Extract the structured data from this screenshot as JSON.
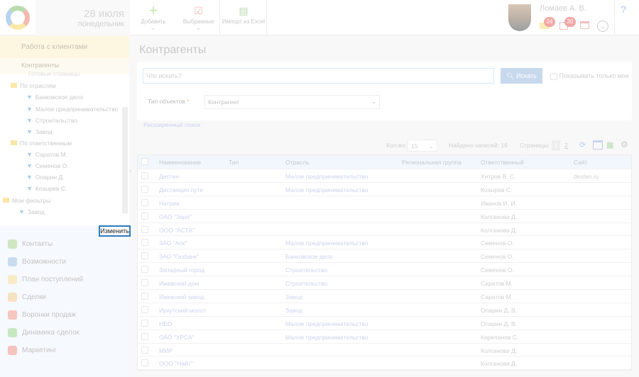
{
  "header": {
    "date": "28 июля",
    "weekday": "понедельник",
    "add": "Добавить",
    "favorites": "Выбранные",
    "import": "Импорт из Excel",
    "user": "Ломаев А. В.",
    "mail_count": "24",
    "tasks_count": "20",
    "help": "?"
  },
  "sidebar": {
    "active": "Работа с клиентами",
    "sub": "Контрагенты",
    "tree": {
      "cut": "Готовые страницы",
      "g1": "По отраслям",
      "g1_items": [
        "Банковское дело",
        "Малое предпринимательство",
        "Строительство",
        "Завод"
      ],
      "g2": "По ответственным",
      "g2_items": [
        "Саратов М.",
        "Семенов О.",
        "Опарин Д.",
        "Козырев С."
      ],
      "g3": "Мои фильтры",
      "g3_items": [
        "Завод"
      ]
    },
    "edit": "Изменить",
    "menu": [
      {
        "label": "Контакты",
        "color": "#cfe6c0"
      },
      {
        "label": "Возможности",
        "color": "#c9dbef"
      },
      {
        "label": "План поступлений",
        "color": "#f7ecc6"
      },
      {
        "label": "Сделки",
        "color": "#f6e2c0"
      },
      {
        "label": "Воронки продаж",
        "color": "#f4c6c0"
      },
      {
        "label": "Динамика сделок",
        "color": "#c6e8c0"
      },
      {
        "label": "Маркетинг",
        "color": "#f6c3bd"
      }
    ]
  },
  "main": {
    "title": "Контрагенты",
    "search_placeholder": "Что искать?",
    "search_btn": "Искать",
    "only_mine": "Показывать только мои",
    "type_label": "Тип объектов",
    "required": "*",
    "type_value": "Контрагент",
    "advanced": "Расширенный поиск",
    "count_label": "Кол-во:",
    "count": "15",
    "found": "Найдено записей: 16",
    "pages_label": "Страницы:",
    "page1": "1",
    "page2": "2"
  },
  "table": {
    "columns": [
      "Наименование",
      "Тип",
      "Отрасль",
      "Региональная группа",
      "Ответственный",
      "Сайт"
    ],
    "rows": [
      [
        "Дестен",
        "",
        "Малое предпринимательство",
        "",
        "Хитров В. С.",
        "desten.ru"
      ],
      [
        "Дистанция пути",
        "",
        "Малое предпринимательство",
        "",
        "Козырев С.",
        ""
      ],
      [
        "Натриа",
        "",
        "",
        "",
        "Иванов И. И.",
        ""
      ],
      [
        "ОАО \"Заря\"",
        "",
        "",
        "",
        "Колганова Д.",
        ""
      ],
      [
        "ООО \"АСТА\"",
        "",
        "",
        "",
        "Колганова Д.",
        ""
      ],
      [
        "ЗАО \"Аск\"",
        "",
        "Малое предпринимательство",
        "",
        "Семенов О.",
        ""
      ],
      [
        "ЗАО \"Газбанк\"",
        "",
        "Банковское дело",
        "",
        "Семенов О.",
        ""
      ],
      [
        "Западный город",
        "",
        "Строительство",
        "",
        "Семенов О.",
        ""
      ],
      [
        "Ижевский дом",
        "",
        "Строительство",
        "",
        "Саратов М.",
        ""
      ],
      [
        "Ижевский завод",
        "",
        "Завод",
        "",
        "Саратов М.",
        ""
      ],
      [
        "Иркутский молот",
        "",
        "Завод",
        "",
        "Опарин Д. В.",
        ""
      ],
      [
        "НЕО",
        "",
        "Малое предпринимательство",
        "",
        "Опарин Д. В.",
        ""
      ],
      [
        "ОАО \"УРСА\"",
        "",
        "Малое предпринимательство",
        "",
        "Корепанов С.",
        ""
      ],
      [
        "МИР",
        "",
        "",
        "",
        "Колганова Д.",
        ""
      ],
      [
        "ООО \"Найт\"",
        "",
        "",
        "",
        "Колганова Д.",
        ""
      ]
    ]
  }
}
